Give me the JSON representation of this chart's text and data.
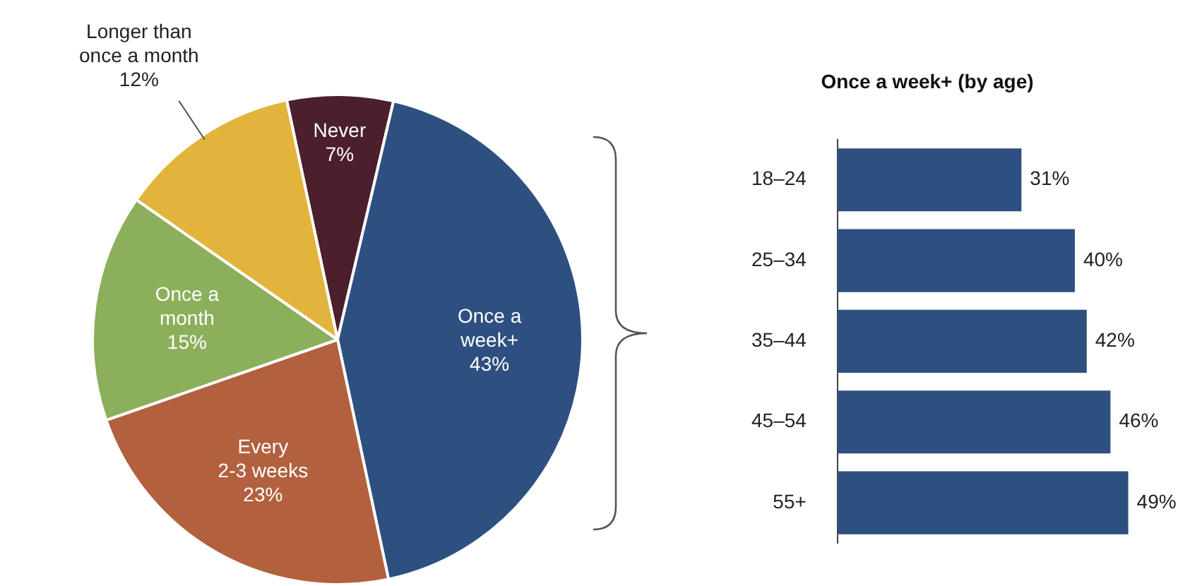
{
  "chart_data": [
    {
      "type": "pie",
      "categories": [
        "Never",
        "Once a\nweek+",
        "Every\n2-3 weeks",
        "Once a\nmonth",
        "Longer than\nonce a month"
      ],
      "values": [
        7,
        43,
        23,
        15,
        12
      ],
      "value_labels": [
        "7%",
        "43%",
        "23%",
        "15%",
        "12%"
      ],
      "colors": [
        "#4b1f2b",
        "#2d5080",
        "#b2603e",
        "#8caf5c",
        "#e3b43c"
      ]
    },
    {
      "type": "bar",
      "orientation": "horizontal",
      "title": "Once a week+ (by age)",
      "categories": [
        "18–24",
        "25–34",
        "35–44",
        "45–54",
        "55+"
      ],
      "values": [
        31,
        40,
        42,
        46,
        49
      ],
      "value_labels": [
        "31%",
        "40%",
        "42%",
        "46%",
        "49%"
      ],
      "color": "#2d5080"
    }
  ]
}
